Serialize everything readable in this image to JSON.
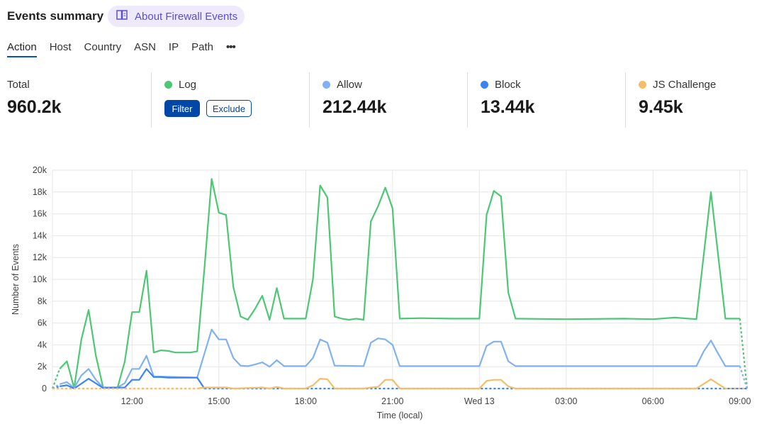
{
  "header": {
    "title": "Events summary",
    "about_label": "About Firewall Events",
    "about_icon": "book-icon"
  },
  "tabs": [
    {
      "label": "Action",
      "active": true
    },
    {
      "label": "Host"
    },
    {
      "label": "Country"
    },
    {
      "label": "ASN"
    },
    {
      "label": "IP"
    },
    {
      "label": "Path"
    },
    {
      "label": "•••"
    }
  ],
  "stats": {
    "total": {
      "label": "Total",
      "value": "960.2k"
    },
    "log": {
      "label": "Log",
      "color": "#4cc774",
      "filter_label": "Filter",
      "exclude_label": "Exclude"
    },
    "allow": {
      "label": "Allow",
      "value": "212.44k",
      "color": "#80b1f3"
    },
    "block": {
      "label": "Block",
      "value": "13.44k",
      "color": "#3b82f6"
    },
    "js": {
      "label": "JS Challenge",
      "value": "9.45k",
      "color": "#f4bd68"
    }
  },
  "chart_data": {
    "type": "line",
    "xlabel": "Time (local)",
    "ylabel": "Number of Events",
    "ylim": [
      0,
      20000
    ],
    "yticks": [
      "0",
      "2k",
      "4k",
      "6k",
      "8k",
      "10k",
      "12k",
      "14k",
      "16k",
      "18k",
      "20k"
    ],
    "xrange": [
      "09:15",
      "09:15"
    ],
    "xticks": [
      {
        "t": "12:00",
        "label": "12:00"
      },
      {
        "t": "15:00",
        "label": "15:00"
      },
      {
        "t": "18:00",
        "label": "18:00"
      },
      {
        "t": "21:00",
        "label": "21:00"
      },
      {
        "t": "00:00",
        "label": "Wed 13"
      },
      {
        "t": "03:00",
        "label": "03:00"
      },
      {
        "t": "06:00",
        "label": "06:00"
      },
      {
        "t": "09:00",
        "label": "09:00"
      }
    ],
    "grid": true,
    "incomplete_edges": "dashed",
    "series": [
      {
        "name": "Log",
        "color": "#4cc774",
        "points": [
          [
            "09:15",
            0
          ],
          [
            "09:30",
            1800
          ],
          [
            "09:45",
            2500
          ],
          [
            "10:00",
            50
          ],
          [
            "10:15",
            4500
          ],
          [
            "10:30",
            7200
          ],
          [
            "10:45",
            3000
          ],
          [
            "11:00",
            100
          ],
          [
            "11:30",
            100
          ],
          [
            "11:45",
            2500
          ],
          [
            "12:00",
            7000
          ],
          [
            "12:15",
            7000
          ],
          [
            "12:30",
            10800
          ],
          [
            "12:45",
            3300
          ],
          [
            "13:00",
            3500
          ],
          [
            "13:15",
            3450
          ],
          [
            "13:30",
            3300
          ],
          [
            "14:00",
            3300
          ],
          [
            "14:15",
            3400
          ],
          [
            "14:30",
            11000
          ],
          [
            "14:45",
            19200
          ],
          [
            "15:00",
            16100
          ],
          [
            "15:15",
            15900
          ],
          [
            "15:30",
            9300
          ],
          [
            "15:45",
            6600
          ],
          [
            "16:00",
            6300
          ],
          [
            "16:15",
            7300
          ],
          [
            "16:30",
            8500
          ],
          [
            "16:45",
            6300
          ],
          [
            "17:00",
            9200
          ],
          [
            "17:15",
            6400
          ],
          [
            "18:00",
            6400
          ],
          [
            "18:15",
            10000
          ],
          [
            "18:30",
            18600
          ],
          [
            "18:45",
            17500
          ],
          [
            "19:00",
            6600
          ],
          [
            "19:15",
            6400
          ],
          [
            "19:30",
            6300
          ],
          [
            "19:45",
            6400
          ],
          [
            "20:00",
            6300
          ],
          [
            "20:15",
            15300
          ],
          [
            "20:30",
            16700
          ],
          [
            "20:45",
            18400
          ],
          [
            "21:00",
            16500
          ],
          [
            "21:15",
            6400
          ],
          [
            "22:00",
            6450
          ],
          [
            "23:00",
            6400
          ],
          [
            "00:00",
            6400
          ],
          [
            "00:15",
            15900
          ],
          [
            "00:30",
            18100
          ],
          [
            "00:45",
            17600
          ],
          [
            "01:00",
            8800
          ],
          [
            "01:15",
            6400
          ],
          [
            "03:00",
            6350
          ],
          [
            "05:00",
            6400
          ],
          [
            "06:00",
            6350
          ],
          [
            "06:45",
            6500
          ],
          [
            "07:30",
            6350
          ],
          [
            "08:00",
            18000
          ],
          [
            "08:30",
            6400
          ],
          [
            "09:00",
            6400
          ],
          [
            "09:15",
            0
          ]
        ]
      },
      {
        "name": "Allow",
        "color": "#80b1f3",
        "points": [
          [
            "09:15",
            0
          ],
          [
            "09:30",
            400
          ],
          [
            "09:45",
            600
          ],
          [
            "10:00",
            50
          ],
          [
            "10:15",
            1200
          ],
          [
            "10:30",
            1800
          ],
          [
            "10:45",
            800
          ],
          [
            "11:00",
            100
          ],
          [
            "11:30",
            100
          ],
          [
            "11:45",
            500
          ],
          [
            "12:00",
            1800
          ],
          [
            "12:15",
            1800
          ],
          [
            "12:30",
            3000
          ],
          [
            "12:45",
            1100
          ],
          [
            "13:00",
            1100
          ],
          [
            "14:15",
            1000
          ],
          [
            "14:30",
            3200
          ],
          [
            "14:45",
            5400
          ],
          [
            "15:00",
            4500
          ],
          [
            "15:15",
            4500
          ],
          [
            "15:30",
            2800
          ],
          [
            "15:45",
            2100
          ],
          [
            "16:00",
            2050
          ],
          [
            "16:15",
            2200
          ],
          [
            "16:30",
            2400
          ],
          [
            "16:45",
            2000
          ],
          [
            "17:00",
            2600
          ],
          [
            "17:15",
            2050
          ],
          [
            "18:00",
            2050
          ],
          [
            "18:15",
            2800
          ],
          [
            "18:30",
            4500
          ],
          [
            "18:45",
            4200
          ],
          [
            "19:00",
            2100
          ],
          [
            "20:00",
            2050
          ],
          [
            "20:15",
            4200
          ],
          [
            "20:30",
            4600
          ],
          [
            "20:45",
            4500
          ],
          [
            "21:00",
            4000
          ],
          [
            "21:15",
            2050
          ],
          [
            "00:00",
            2050
          ],
          [
            "00:15",
            3900
          ],
          [
            "00:30",
            4300
          ],
          [
            "00:45",
            4300
          ],
          [
            "01:00",
            2500
          ],
          [
            "01:15",
            2050
          ],
          [
            "07:30",
            2050
          ],
          [
            "07:45",
            3400
          ],
          [
            "08:00",
            4400
          ],
          [
            "08:15",
            3200
          ],
          [
            "08:30",
            2050
          ],
          [
            "09:00",
            2050
          ],
          [
            "09:15",
            0
          ]
        ]
      },
      {
        "name": "Block",
        "color": "#3b82f6",
        "points": [
          [
            "09:15",
            0
          ],
          [
            "09:30",
            200
          ],
          [
            "09:45",
            300
          ],
          [
            "10:00",
            0
          ],
          [
            "10:30",
            900
          ],
          [
            "11:00",
            50
          ],
          [
            "11:45",
            100
          ],
          [
            "12:00",
            800
          ],
          [
            "12:15",
            800
          ],
          [
            "12:30",
            1800
          ],
          [
            "12:45",
            1050
          ],
          [
            "13:00",
            1050
          ],
          [
            "13:15",
            1000
          ],
          [
            "14:15",
            1000
          ],
          [
            "14:30",
            0
          ],
          [
            "09:15",
            0
          ]
        ]
      },
      {
        "name": "JS Challenge",
        "color": "#f4bd68",
        "points": [
          [
            "09:15",
            0
          ],
          [
            "14:15",
            0
          ],
          [
            "14:30",
            100
          ],
          [
            "15:15",
            100
          ],
          [
            "15:30",
            0
          ],
          [
            "16:30",
            100
          ],
          [
            "16:45",
            0
          ],
          [
            "17:00",
            150
          ],
          [
            "17:15",
            0
          ],
          [
            "18:00",
            0
          ],
          [
            "18:15",
            300
          ],
          [
            "18:30",
            900
          ],
          [
            "18:45",
            850
          ],
          [
            "19:00",
            0
          ],
          [
            "20:00",
            0
          ],
          [
            "20:15",
            100
          ],
          [
            "20:30",
            150
          ],
          [
            "20:45",
            800
          ],
          [
            "21:00",
            800
          ],
          [
            "21:15",
            0
          ],
          [
            "00:00",
            0
          ],
          [
            "00:15",
            700
          ],
          [
            "00:30",
            800
          ],
          [
            "00:45",
            800
          ],
          [
            "01:00",
            200
          ],
          [
            "01:15",
            0
          ],
          [
            "07:30",
            0
          ],
          [
            "08:00",
            850
          ],
          [
            "08:30",
            0
          ],
          [
            "09:15",
            0
          ]
        ]
      }
    ]
  }
}
